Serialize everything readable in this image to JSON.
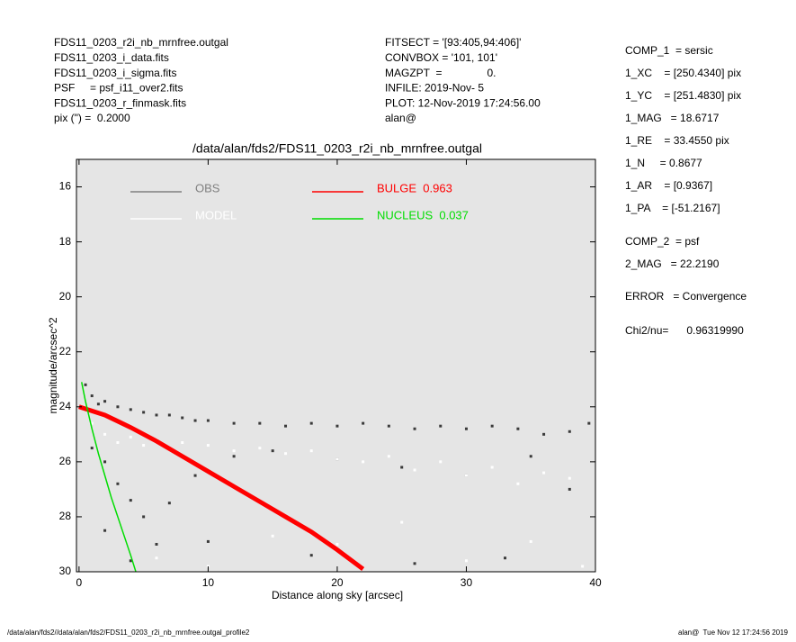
{
  "header": {
    "left": [
      "FDS11_0203_r2i_nb_mrnfree.outgal",
      "FDS11_0203_i_data.fits",
      "FDS11_0203_i_sigma.fits",
      "PSF     = psf_i11_over2.fits",
      "FDS11_0203_r_finmask.fits",
      "pix (\") =  0.2000"
    ],
    "middle": [
      "FITSECT = '[93:405,94:406]'",
      "CONVBOX = '101, 101'",
      "MAGZPT  =               0.",
      "INFILE: 2019-Nov- 5",
      "PLOT: 12-Nov-2019 17:24:56.00",
      "alan@"
    ],
    "right": [
      "COMP_1  = sersic",
      "1_XC    = [250.4340] pix",
      "1_YC    = [251.4830] pix",
      "1_MAG   = 18.6717",
      "1_RE    = 33.4550 pix",
      "1_N     = 0.8677",
      "1_AR    = [0.9367]",
      "1_PA    = [-51.2167]",
      "COMP_2  = psf",
      "2_MAG   = 22.2190",
      "ERROR   = Convergence",
      "Chi2/nu=      0.96319990"
    ]
  },
  "footer": {
    "left": "/data/alan/fds2//data/alan/fds2/FDS11_0203_r2i_nb_mrnfree.outgal_profile2",
    "right": "alan@  Tue Nov 12 17:24:56 2019"
  },
  "chart_data": {
    "type": "scatter",
    "title": "/data/alan/fds2/FDS11_0203_r2i_nb_mrnfree.outgal",
    "x_label": "Distance along sky [arcsec]",
    "y_label": "magnitude/arcsec^2",
    "xlim": [
      -0.2,
      40
    ],
    "ylim": [
      30,
      15
    ],
    "xticks": [
      0,
      10,
      20,
      30,
      40
    ],
    "yticks": [
      16,
      18,
      20,
      22,
      24,
      26,
      28,
      30
    ],
    "background": "#e5e5e5",
    "series": [
      {
        "name": "OBS",
        "type": "scatter",
        "color": "#808080",
        "marker_color": "#3a3a3a",
        "x": [
          0.5,
          1,
          1.5,
          2,
          3,
          4,
          5,
          6,
          7,
          8,
          9,
          10,
          12,
          14,
          16,
          18,
          20,
          22,
          24,
          26,
          28,
          30,
          32,
          34,
          36,
          38,
          39.5,
          1,
          2,
          3,
          4,
          5,
          7,
          9,
          12,
          15,
          20,
          25,
          30,
          35,
          38,
          2,
          4,
          6,
          10,
          18,
          26,
          33
        ],
        "values": [
          23.2,
          23.6,
          23.9,
          23.8,
          24.0,
          24.1,
          24.2,
          24.3,
          24.3,
          24.4,
          24.5,
          24.5,
          24.6,
          24.6,
          24.7,
          24.6,
          24.7,
          24.6,
          24.7,
          24.8,
          24.7,
          24.8,
          24.7,
          24.8,
          25.0,
          24.9,
          24.6,
          25.5,
          26.0,
          26.8,
          27.4,
          28.0,
          27.5,
          26.5,
          25.8,
          25.6,
          25.9,
          26.2,
          26.5,
          25.8,
          27.0,
          28.5,
          29.6,
          29.0,
          28.9,
          29.4,
          29.7,
          29.5
        ]
      },
      {
        "name": "MODEL",
        "type": "scatter",
        "color": "#ffffff",
        "marker_color": "#ffffff",
        "x": [
          1,
          2,
          3,
          4,
          5,
          6,
          8,
          10,
          12,
          14,
          16,
          18,
          20,
          22,
          24,
          26,
          28,
          30,
          32,
          34,
          36,
          38,
          6,
          10,
          15,
          20,
          25,
          30,
          35,
          39
        ],
        "values": [
          24.6,
          25.0,
          25.3,
          25.1,
          25.4,
          25.2,
          25.3,
          25.4,
          25.6,
          25.5,
          25.7,
          25.6,
          25.9,
          26.0,
          25.8,
          26.3,
          26.0,
          26.5,
          26.2,
          26.8,
          26.4,
          26.6,
          29.5,
          29.8,
          28.7,
          29.0,
          28.2,
          29.6,
          28.9,
          29.8
        ]
      },
      {
        "name": "BULGE  0.963",
        "type": "line",
        "color": "#ff0000",
        "x": [
          0,
          2,
          4,
          6,
          8,
          10,
          12,
          14,
          16,
          18,
          20,
          22
        ],
        "values": [
          24.0,
          24.3,
          24.75,
          25.25,
          25.8,
          26.35,
          26.9,
          27.45,
          28.0,
          28.55,
          29.2,
          29.9
        ]
      },
      {
        "name": "NUCLEUS  0.037",
        "type": "line",
        "color": "#00dd00",
        "x": [
          0.2,
          0.5,
          1,
          1.5,
          2,
          2.5,
          3,
          3.5,
          4,
          4.4
        ],
        "values": [
          23.1,
          23.8,
          24.8,
          25.7,
          26.5,
          27.3,
          28.0,
          28.7,
          29.4,
          30.0
        ]
      }
    ]
  }
}
